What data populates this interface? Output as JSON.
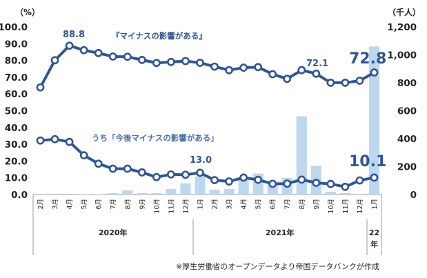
{
  "chart_data": {
    "type": "line+bar",
    "left_axis": {
      "unit": "（%）",
      "ylim": [
        0,
        100
      ],
      "ticks": [
        "0.0",
        "10.0",
        "20.0",
        "30.0",
        "40.0",
        "50.0",
        "60.0",
        "70.0",
        "80.0",
        "90.0",
        "100.0"
      ]
    },
    "right_axis": {
      "unit": "（千人）",
      "ylim": [
        0,
        1200
      ],
      "ticks": [
        "0",
        "200",
        "400",
        "600",
        "800",
        "1,000",
        "1,200"
      ]
    },
    "categories": [
      "2月",
      "3月",
      "4月",
      "5月",
      "6月",
      "7月",
      "8月",
      "9月",
      "10月",
      "11月",
      "12月",
      "1月",
      "2月",
      "3月",
      "4月",
      "5月",
      "6月",
      "7月",
      "8月",
      "9月",
      "10月",
      "11月",
      "12月",
      "1月"
    ],
    "year_labels": [
      {
        "label": "2020年",
        "start": 0,
        "end": 10
      },
      {
        "label": "2021年",
        "start": 11,
        "end": 22
      },
      {
        "label": "22年",
        "start": 23,
        "end": 23
      }
    ],
    "series": [
      {
        "name": "『マイナスの影響がある』",
        "axis": "left",
        "type": "line",
        "color": "#2F5597",
        "values": [
          63.9,
          80.1,
          88.8,
          86.1,
          84.4,
          82.3,
          82.2,
          80.3,
          78.5,
          79.1,
          79.6,
          78.6,
          76.3,
          74.2,
          75.7,
          76.0,
          71.8,
          69.0,
          74.2,
          72.1,
          66.7,
          66.7,
          67.9,
          72.8
        ]
      },
      {
        "name": "うち「今後マイナスの影響がある」",
        "axis": "left",
        "type": "line",
        "color": "#2F5597",
        "values": [
          32.2,
          33.0,
          31.4,
          23.4,
          18.4,
          15.4,
          15.4,
          13.2,
          10.4,
          12.0,
          11.8,
          13.0,
          8.6,
          7.8,
          10.1,
          8.8,
          6.4,
          6.5,
          8.9,
          7.0,
          6.3,
          4.6,
          8.4,
          10.1
        ]
      },
      {
        "name": "",
        "axis": "right",
        "type": "bar",
        "color": "#BDD7EE",
        "values": [
          0,
          0,
          5,
          2,
          3,
          10,
          30,
          10,
          10,
          40,
          80,
          130,
          35,
          40,
          110,
          150,
          75,
          120,
          560,
          205,
          20,
          10,
          5,
          1060
        ]
      }
    ],
    "annotations": [
      {
        "text": "88.8",
        "size": "small"
      },
      {
        "text": "72.1",
        "size": "small"
      },
      {
        "text": "72.8",
        "size": "big"
      },
      {
        "text": "13.0",
        "size": "small"
      },
      {
        "text": "10.1",
        "size": "big"
      }
    ],
    "source_note": "※厚生労働省のオープンデータより帝国データバンクが作成"
  }
}
